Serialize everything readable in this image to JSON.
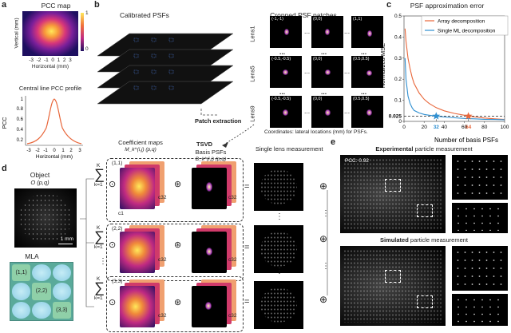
{
  "panel_a": {
    "label": "a",
    "map_title": "PCC map",
    "map_ylabel": "Vertical (mm)",
    "map_xlabel": "Horizontal (mm)",
    "ticks": [
      "-3",
      "-2",
      "-1",
      "0",
      "1",
      "2",
      "3"
    ],
    "colorbar_ticks": [
      "1",
      "0"
    ],
    "profile_title": "Central line PCC profile",
    "profile_ylabel": "PCC",
    "profile_yticks": [
      "0.2",
      "0.4",
      "0.6",
      "0.8",
      "1"
    ],
    "profile_xlabel": "Horizontal (mm)"
  },
  "panel_b": {
    "label": "b",
    "calibrated_title": "Calibrated PSFs",
    "cropped_title": "Cropped PSF patches",
    "rows": [
      {
        "lens": "Lens1",
        "coords": [
          "(-1,-1)",
          "(0,0)",
          "(1,1)"
        ]
      },
      {
        "lens": "Lens5",
        "coords": [
          "(-0.5,-0.5)",
          "(0,0)",
          "(0.5,0.5)"
        ]
      },
      {
        "lens": "Lens9",
        "coords": [
          "(-0.5,-0.5)",
          "(0,0)",
          "(0.5,0.5)"
        ]
      }
    ],
    "ellipsis": "...",
    "patch_extraction": "Patch extraction",
    "coords_caption": "Coordinates: lateral locations (mm) for PSFs."
  },
  "panel_c": {
    "label": "c",
    "title": "PSF approximation error",
    "ylabel": "Normalized MSE",
    "xlabel": "Number of basis PSFs",
    "legend": [
      "Array decomposition",
      "Single ML decomposition"
    ],
    "threshold_label": "0.025",
    "marker_labels": [
      "32",
      "64"
    ]
  },
  "chart_data": {
    "type": "line",
    "title": "PSF approximation error",
    "xlabel": "Number of basis PSFs",
    "ylabel": "Normalized MSE",
    "xlim": [
      0,
      100
    ],
    "ylim": [
      0,
      0.5
    ],
    "xticks": [
      0,
      20,
      40,
      60,
      80,
      100
    ],
    "yticks": [
      0,
      0.1,
      0.2,
      0.3,
      0.4,
      0.5
    ],
    "x": [
      1,
      2,
      4,
      6,
      8,
      10,
      15,
      20,
      25,
      32,
      40,
      50,
      60,
      64,
      70,
      80,
      90,
      100
    ],
    "series": [
      {
        "name": "Array decomposition",
        "color": "#e8663a",
        "values": [
          0.44,
          0.38,
          0.3,
          0.25,
          0.21,
          0.18,
          0.135,
          0.105,
          0.085,
          0.065,
          0.05,
          0.038,
          0.029,
          0.025,
          0.021,
          0.016,
          0.012,
          0.009
        ]
      },
      {
        "name": "Single ML decomposition",
        "color": "#2f8fd0",
        "values": [
          0.3,
          0.2,
          0.12,
          0.085,
          0.065,
          0.052,
          0.04,
          0.033,
          0.029,
          0.025,
          0.021,
          0.017,
          0.014,
          0.013,
          0.012,
          0.01,
          0.009,
          0.008
        ]
      }
    ],
    "threshold": 0.025,
    "markers": [
      {
        "x": 32,
        "series": "Single ML decomposition",
        "color": "#2f8fd0"
      },
      {
        "x": 64,
        "series": "Array decomposition",
        "color": "#e8663a"
      }
    ]
  },
  "panel_d": {
    "label": "d",
    "object_title": "Object",
    "object_formula": "O (p,q)",
    "scale_bar": "1 mm",
    "mla_title": "MLA",
    "mla_cells": [
      "(1,1)",
      "",
      "",
      "",
      "(2,2)",
      "",
      "",
      "",
      "(3,3)"
    ],
    "tsvd": "TSVD",
    "coef_title": "Coefficient maps",
    "coef_formula": "M_k^(i,j) (p,q)",
    "basis_title": "Basis PSFs",
    "basis_formula": "B_k^(i,j) (p,q)",
    "rows": [
      "(1,1)",
      "(2,2)",
      "(3,3)"
    ],
    "c1": "c1",
    "c32": "c32",
    "sum_top": "K",
    "sum_bottom": "k=1",
    "single_lens_title": "Single lens measurement",
    "equals": "=",
    "oplus": "⊕",
    "odot": "⊙",
    "conv": "⊛",
    "dots": "⋮"
  },
  "panel_e": {
    "label": "e",
    "experimental_title": "Experimental particle measurement",
    "experimental_word": "Experimental",
    "rest": "particle measurement",
    "simulated_word": "Simulated",
    "pcc": "PCC: 0.92"
  },
  "colors": {
    "orange": "#e8663a",
    "blue": "#2f8fd0",
    "mla_fill": "#7fc8a8",
    "mla_cell": "#a6dcea"
  }
}
